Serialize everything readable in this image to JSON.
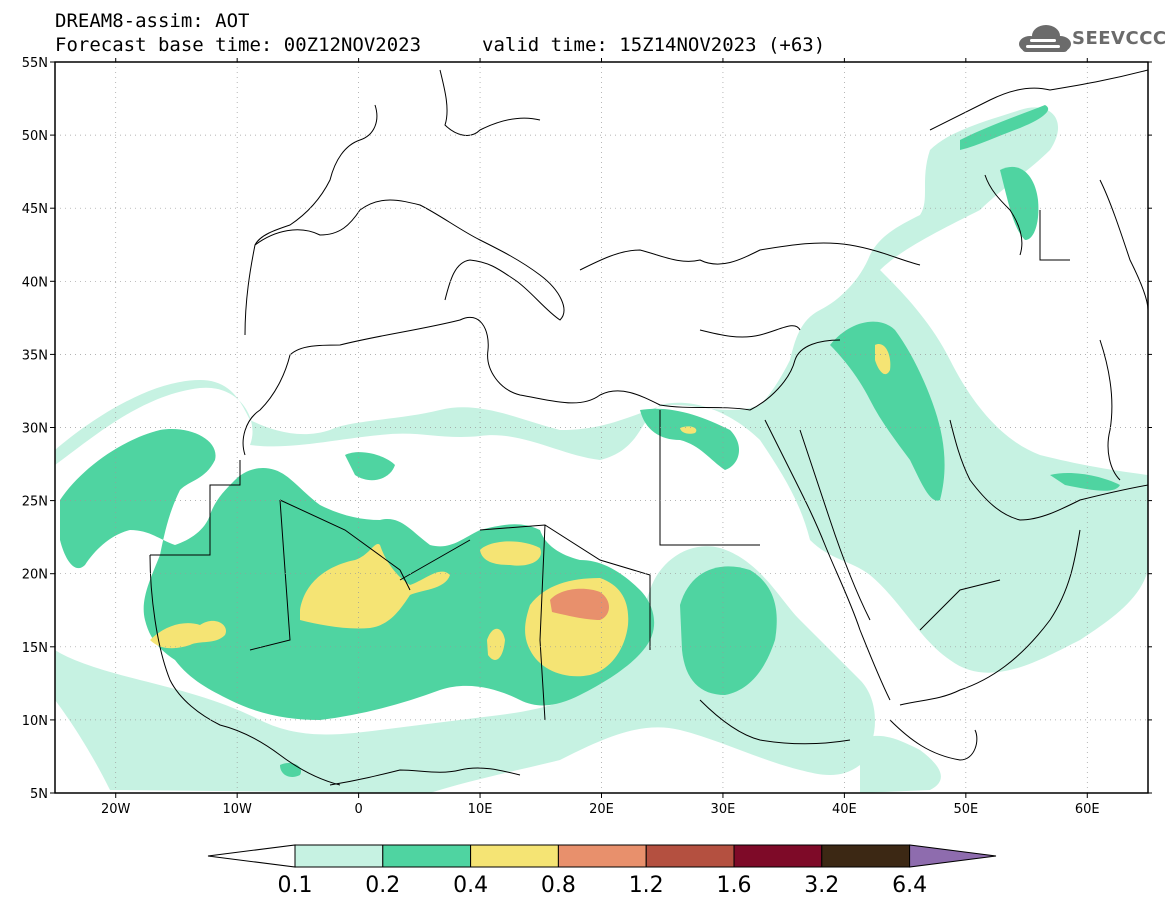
{
  "header": {
    "line1": "DREAM8-assim: AOT",
    "line2": "Forecast base time: 00Z12NOV2023",
    "line3": "valid time: 15Z14NOV2023 (+63)"
  },
  "logo": {
    "text": "SEEVCCC",
    "icon": "cloud-icon",
    "color": "#6b6b6b"
  },
  "map": {
    "lon_range": [
      -25,
      65
    ],
    "lat_range": [
      5,
      55
    ],
    "lat_ticks": [
      "5N",
      "10N",
      "15N",
      "20N",
      "25N",
      "30N",
      "35N",
      "40N",
      "45N",
      "50N",
      "55N"
    ],
    "lon_ticks": [
      "20W",
      "10W",
      "0",
      "10E",
      "20E",
      "30E",
      "40E",
      "50E",
      "60E"
    ]
  },
  "colorbar": {
    "labels": [
      "0.1",
      "0.2",
      "0.4",
      "0.8",
      "1.2",
      "1.6",
      "3.2",
      "6.4"
    ],
    "colors": [
      "#ffffff",
      "#c6f2e2",
      "#4fd4a1",
      "#f5e474",
      "#e8906c",
      "#b45040",
      "#7e0a28",
      "#3c2814",
      "#8e6cae"
    ]
  }
}
